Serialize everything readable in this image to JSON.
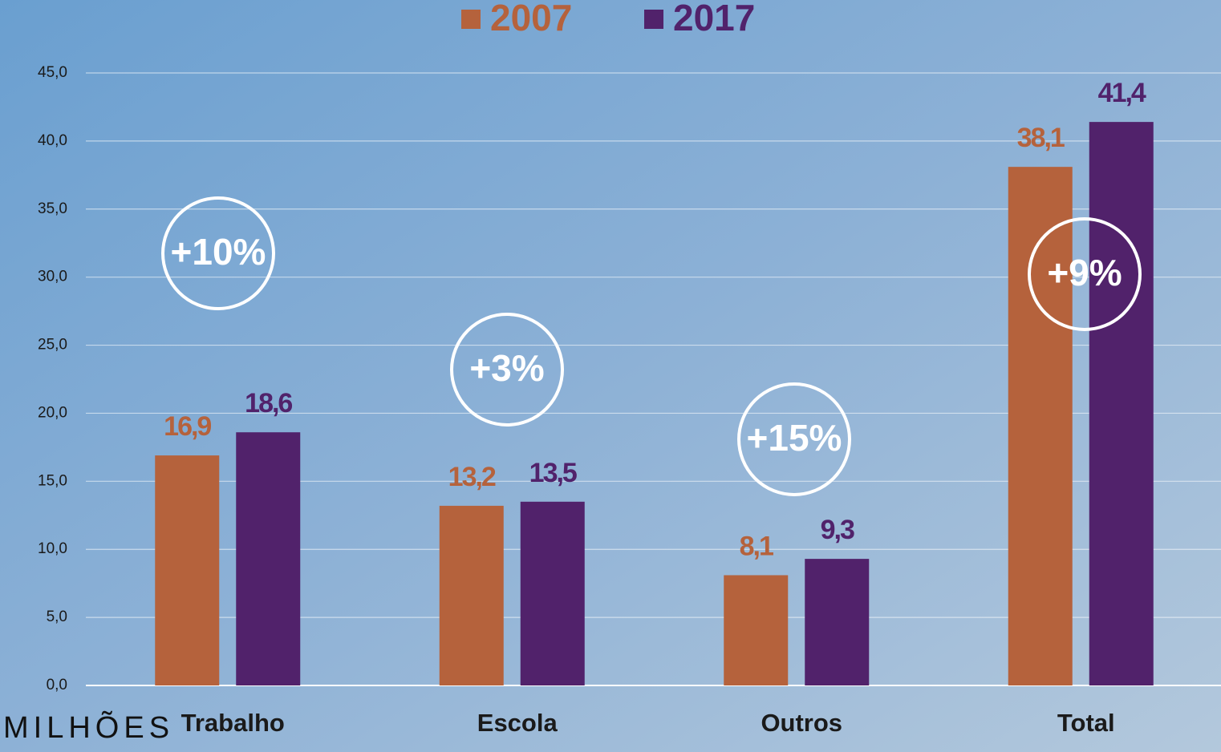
{
  "chart_data": {
    "type": "bar",
    "y_label": "MILHÕES",
    "categories": [
      "Trabalho",
      "Escola",
      "Outros",
      "Total"
    ],
    "series": [
      {
        "name": "2007",
        "color": "#b5623c",
        "values": [
          16.9,
          13.2,
          8.1,
          38.1
        ],
        "value_labels": [
          "16,9",
          "13,2",
          "8,1",
          "38,1"
        ]
      },
      {
        "name": "2017",
        "color": "#51226b",
        "values": [
          18.6,
          13.5,
          9.3,
          41.4
        ],
        "value_labels": [
          "18,6",
          "13,5",
          "9,3",
          "41,4"
        ]
      }
    ],
    "annotations": [
      "+10%",
      "+3%",
      "+15%",
      "+9%"
    ],
    "ylim": [
      0,
      45
    ],
    "yticks": [
      {
        "value": 0,
        "label": "0,0"
      },
      {
        "value": 5,
        "label": "5,0"
      },
      {
        "value": 10,
        "label": "10,0"
      },
      {
        "value": 15,
        "label": "15,0"
      },
      {
        "value": 20,
        "label": "20,0"
      },
      {
        "value": 25,
        "label": "25,0"
      },
      {
        "value": 30,
        "label": "30,0"
      },
      {
        "value": 35,
        "label": "35,0"
      },
      {
        "value": 40,
        "label": "40,0"
      },
      {
        "value": 45,
        "label": "45,0"
      }
    ],
    "grid": true
  }
}
